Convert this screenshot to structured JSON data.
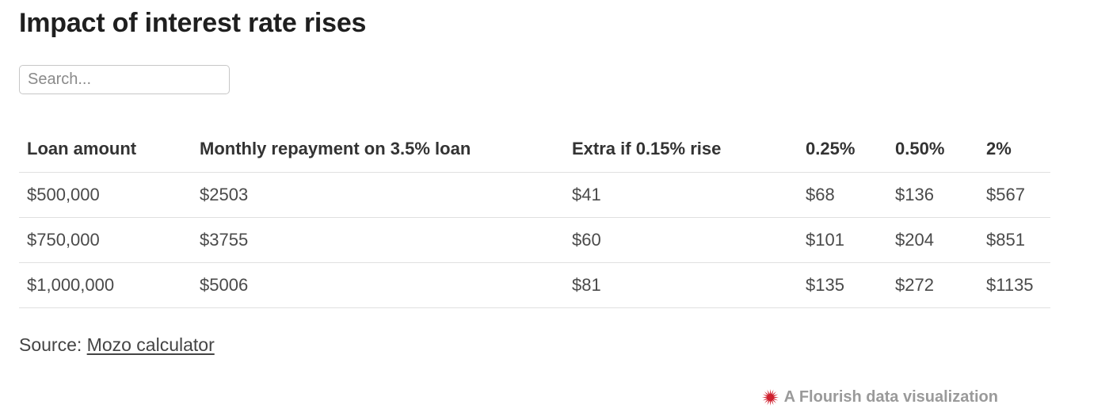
{
  "header": {
    "title": "Impact of interest rate rises"
  },
  "search": {
    "placeholder": "Search...",
    "value": ""
  },
  "table": {
    "columns": [
      "Loan amount",
      "Monthly repayment on 3.5% loan",
      "Extra if 0.15% rise",
      "0.25%",
      "0.50%",
      "2%"
    ],
    "rows": [
      [
        "$500,000",
        "$2503",
        "$41",
        "$68",
        "$136",
        "$567"
      ],
      [
        "$750,000",
        "$3755",
        "$60",
        "$101",
        "$204",
        "$851"
      ],
      [
        "$1,000,000",
        "$5006",
        "$81",
        "$135",
        "$272",
        "$1135"
      ]
    ]
  },
  "source": {
    "label": "Source: ",
    "link_text": "Mozo calculator"
  },
  "attribution": {
    "text": "A Flourish data visualization",
    "icon": "flourish-starburst-icon",
    "icon_color": "#cf202e",
    "text_color": "#9a9a9a"
  },
  "colors": {
    "title_text": "#1f1f1f",
    "header_text": "#333333",
    "cell_text": "#4a4a4a",
    "row_border": "#e0e0e0",
    "search_border": "#c7c7c7"
  },
  "chart_data": {
    "type": "table",
    "title": "Impact of interest rate rises",
    "columns": [
      "Loan amount",
      "Monthly repayment on 3.5% loan",
      "Extra if 0.15% rise",
      "0.25%",
      "0.50%",
      "2%"
    ],
    "rows": [
      [
        "$500,000",
        "$2503",
        "$41",
        "$68",
        "$136",
        "$567"
      ],
      [
        "$750,000",
        "$3755",
        "$60",
        "$101",
        "$204",
        "$851"
      ],
      [
        "$1,000,000",
        "$5006",
        "$81",
        "$135",
        "$272",
        "$1135"
      ]
    ],
    "source": "Mozo calculator",
    "searchable": true,
    "grid": "horizontal-row-dividers"
  }
}
